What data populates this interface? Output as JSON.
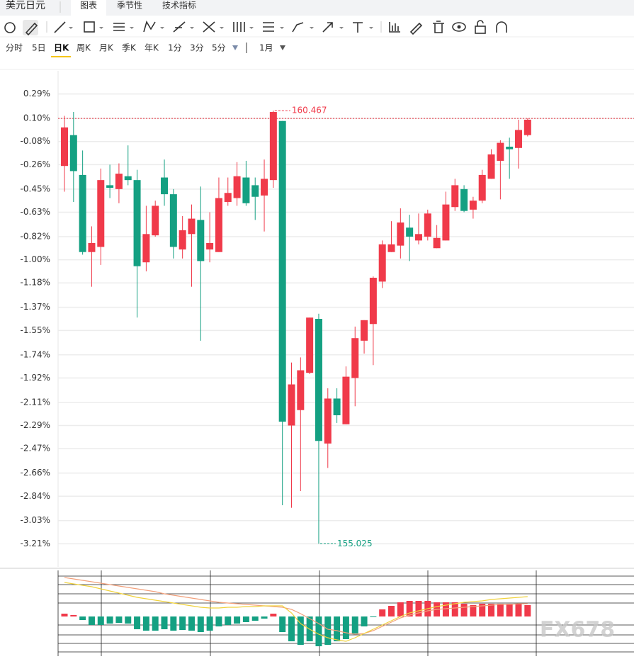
{
  "header": {
    "symbol": "美元日元",
    "tabs": [
      "图表",
      "季节性",
      "技术指标"
    ]
  },
  "timeframes": [
    "分时",
    "5日",
    "日K",
    "周K",
    "月K",
    "季K",
    "年K",
    "1分",
    "3分",
    "5分"
  ],
  "period": "1月",
  "watermark": "FX678",
  "chart_data": [
    {
      "type": "candlestick",
      "up_color": "#f03a4a",
      "down_color": "#14a082",
      "ylim": [
        -3.39,
        0.47
      ],
      "yticks": [
        {
          "value": 0.29,
          "label": "0.29%"
        },
        {
          "value": 0.1,
          "label": "0.10%"
        },
        {
          "value": -0.08,
          "label": "-0.08%"
        },
        {
          "value": -0.26,
          "label": "-0.26%"
        },
        {
          "value": -0.45,
          "label": "-0.45%"
        },
        {
          "value": -0.63,
          "label": "-0.63%"
        },
        {
          "value": -0.82,
          "label": "-0.82%"
        },
        {
          "value": -1.0,
          "label": "-1.00%"
        },
        {
          "value": -1.18,
          "label": "-1.18%"
        },
        {
          "value": -1.37,
          "label": "-1.37%"
        },
        {
          "value": -1.55,
          "label": "-1.55%"
        },
        {
          "value": -1.74,
          "label": "-1.74%"
        },
        {
          "value": -1.92,
          "label": "-1.92%"
        },
        {
          "value": -2.11,
          "label": "-2.11%"
        },
        {
          "value": -2.29,
          "label": "-2.29%"
        },
        {
          "value": -2.47,
          "label": "-2.47%"
        },
        {
          "value": -2.66,
          "label": "-2.66%"
        },
        {
          "value": -2.84,
          "label": "-2.84%"
        },
        {
          "value": -3.03,
          "label": "-3.03%"
        },
        {
          "value": -3.21,
          "label": "-3.21%"
        }
      ],
      "grid": true,
      "ref_line": 0.1,
      "max_label": 160.467,
      "min_label": 155.025,
      "open": [
        -0.27,
        -0.03,
        -0.34,
        -0.94,
        -0.9,
        -0.42,
        -0.45,
        -0.35,
        -0.38,
        -1.02,
        -0.81,
        -0.36,
        -0.49,
        -0.92,
        -0.8,
        -0.69,
        -0.92,
        -0.94,
        -0.55,
        -0.52,
        -0.36,
        -0.42,
        -0.5,
        -0.38,
        0.08,
        -2.29,
        -2.17,
        -1.88,
        -1.46,
        -2.43,
        -2.08,
        -2.28,
        -1.92,
        -1.63,
        -1.5,
        -1.17,
        -0.94,
        -0.89,
        -0.75,
        -0.85,
        -0.82,
        -0.91,
        -0.85,
        -0.59,
        -0.45,
        -0.61,
        -0.54,
        -0.37,
        -0.23,
        -0.12,
        -0.13,
        -0.03
      ],
      "close": [
        0.03,
        -0.31,
        -0.94,
        -0.87,
        -0.38,
        -0.44,
        -0.33,
        -0.38,
        -1.05,
        -0.8,
        -0.58,
        -0.49,
        -0.9,
        -0.77,
        -0.68,
        -1.01,
        -0.87,
        -0.52,
        -0.48,
        -0.35,
        -0.56,
        -0.51,
        -0.37,
        0.15,
        -2.26,
        -1.97,
        -1.86,
        -1.45,
        -2.41,
        -2.08,
        -2.21,
        -1.91,
        -1.61,
        -1.47,
        -1.14,
        -0.88,
        -0.88,
        -0.71,
        -0.82,
        -0.8,
        -0.64,
        -0.83,
        -0.57,
        -0.42,
        -0.62,
        -0.54,
        -0.34,
        -0.18,
        -0.09,
        -0.14,
        0.01,
        0.09
      ],
      "high": [
        0.12,
        0.15,
        -0.15,
        -0.74,
        -0.29,
        -0.26,
        -0.25,
        -0.11,
        -0.3,
        -0.58,
        -0.54,
        -0.22,
        -0.45,
        -0.66,
        -0.57,
        -0.43,
        -0.63,
        -0.36,
        -0.36,
        -0.24,
        -0.23,
        -0.36,
        -0.22,
        0.16,
        0.08,
        -1.8,
        -1.76,
        -1.45,
        -1.42,
        -2.0,
        -2.0,
        -1.83,
        -1.52,
        -1.47,
        -1.13,
        -0.85,
        -0.7,
        -0.6,
        -0.65,
        -0.64,
        -0.61,
        -0.73,
        -0.47,
        -0.37,
        -0.42,
        -0.51,
        -0.3,
        -0.14,
        -0.07,
        -0.05,
        0.09,
        0.1
      ],
      "low": [
        -0.47,
        -0.55,
        -0.96,
        -1.21,
        -1.04,
        -0.52,
        -0.56,
        -0.42,
        -1.45,
        -1.09,
        -0.82,
        -0.58,
        -0.99,
        -0.99,
        -1.21,
        -1.63,
        -1.02,
        -0.94,
        -0.58,
        -0.58,
        -0.58,
        -0.69,
        -0.78,
        -0.44,
        -2.91,
        -2.93,
        -2.8,
        -1.89,
        -3.21,
        -2.62,
        -2.27,
        -2.28,
        -2.14,
        -1.73,
        -1.82,
        -1.22,
        -0.94,
        -0.99,
        -1.01,
        -0.88,
        -0.85,
        -0.91,
        -0.85,
        -0.62,
        -0.63,
        -0.68,
        -0.56,
        -0.37,
        -0.53,
        -0.37,
        -0.29,
        -0.04
      ]
    },
    {
      "type": "macd",
      "up_color": "#f03a4a",
      "down_color": "#14a082",
      "ylim": [
        -56,
        65
      ],
      "values": [
        4,
        2,
        -5,
        -12,
        -12,
        -10,
        -9,
        -10,
        -18,
        -20,
        -20,
        -18,
        -20,
        -19,
        -20,
        -22,
        -20,
        -14,
        -12,
        -10,
        -8,
        -6,
        -3,
        4,
        -22,
        -35,
        -40,
        -35,
        -42,
        -40,
        -35,
        -32,
        -24,
        -14,
        -1,
        10,
        15,
        20,
        22,
        22,
        22,
        20,
        20,
        20,
        18,
        16,
        18,
        18,
        18,
        18,
        18,
        16
      ],
      "series": [
        {
          "color": "#f2a07b",
          "values": [
            55,
            53,
            51,
            49,
            47,
            45,
            43,
            41,
            39,
            37,
            35,
            32,
            30,
            28,
            26,
            24,
            22,
            20,
            19,
            18,
            17,
            16,
            15,
            14,
            13,
            10,
            4,
            -3,
            -10,
            -18,
            -20,
            -23,
            -25,
            -24,
            -20,
            -14,
            -8,
            -2,
            2,
            5,
            8,
            10,
            11,
            12,
            13,
            14,
            15,
            16,
            17,
            17,
            18,
            18
          ]
        },
        {
          "color": "#f0d23c",
          "values": [
            48,
            46,
            44,
            42,
            39,
            36,
            33,
            30,
            27,
            25,
            23,
            21,
            19,
            17,
            15,
            13,
            12,
            12,
            13,
            13,
            14,
            14,
            15,
            15,
            15,
            5,
            -10,
            -18,
            -25,
            -30,
            -33,
            -35,
            -30,
            -24,
            -18,
            -12,
            -6,
            0,
            5,
            8,
            11,
            14,
            16,
            18,
            20,
            21,
            22,
            24,
            25,
            26,
            27,
            28
          ]
        }
      ]
    }
  ]
}
